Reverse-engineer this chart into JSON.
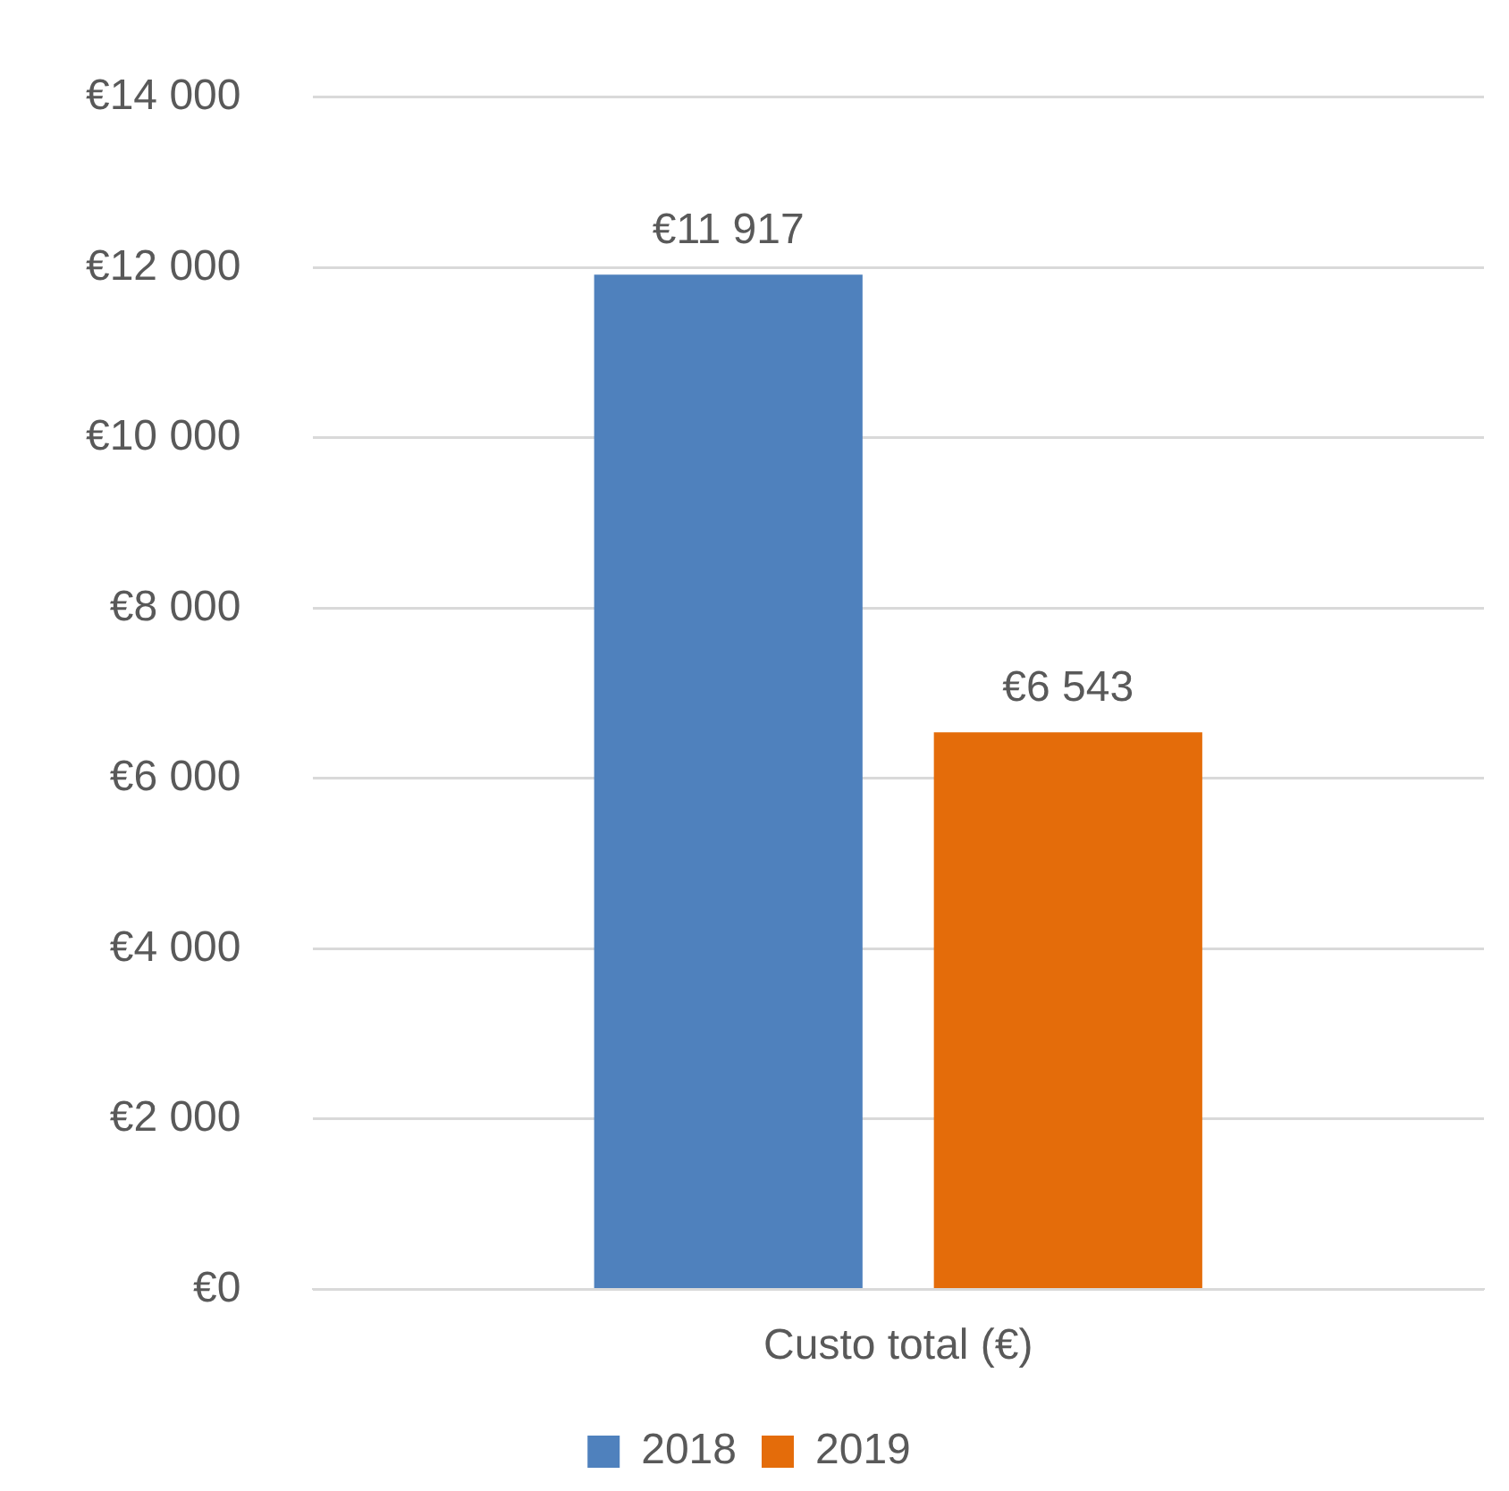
{
  "chart_data": {
    "type": "bar",
    "categories": [
      "Custo total (€)"
    ],
    "series": [
      {
        "name": "2018",
        "color": "#4f81bd",
        "values": [
          11917
        ],
        "value_labels": [
          "€11 917"
        ]
      },
      {
        "name": "2019",
        "color": "#e46c0a",
        "values": [
          6543
        ],
        "value_labels": [
          "€6 543"
        ]
      }
    ],
    "ylim": [
      0,
      14000
    ],
    "yticks": [
      {
        "value": 0,
        "label": "€0"
      },
      {
        "value": 2000,
        "label": "€2 000"
      },
      {
        "value": 4000,
        "label": "€4 000"
      },
      {
        "value": 6000,
        "label": "€6 000"
      },
      {
        "value": 8000,
        "label": "€8 000"
      },
      {
        "value": 10000,
        "label": "€10 000"
      },
      {
        "value": 12000,
        "label": "€12 000"
      },
      {
        "value": 14000,
        "label": "€14 000"
      }
    ],
    "grid": "y",
    "legend": "bottom"
  }
}
